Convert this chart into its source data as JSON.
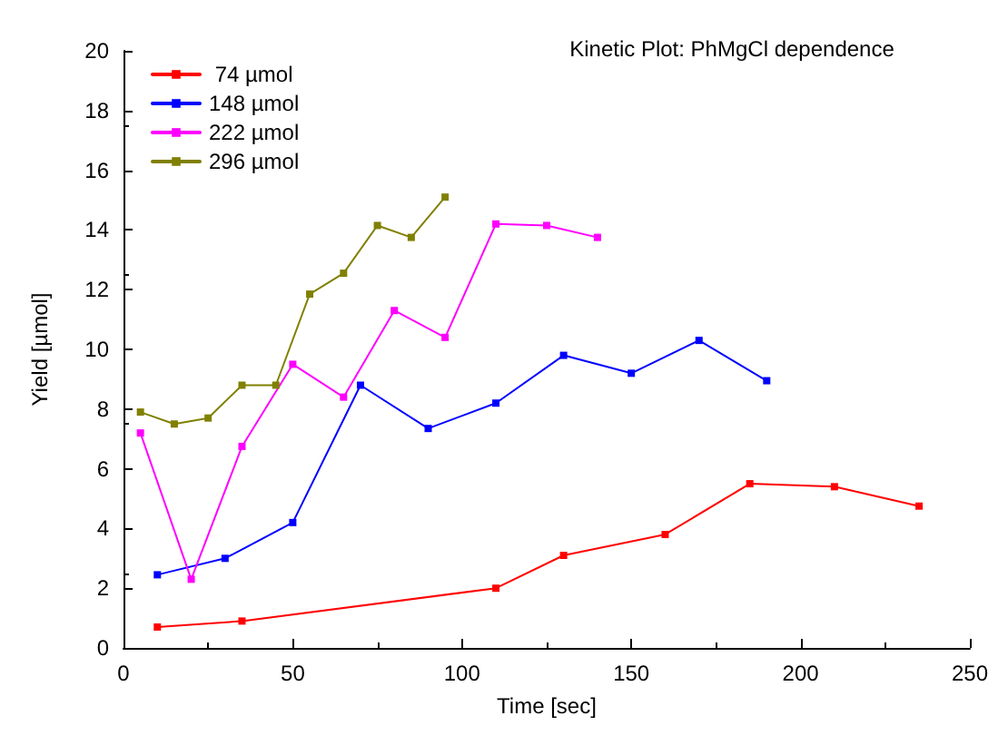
{
  "chart_data": {
    "type": "line",
    "title": "Kinetic Plot: PhMgCl dependence",
    "xlabel": "Time [sec]",
    "ylabel": "Yield [µmol]",
    "xlim": [
      0,
      250
    ],
    "xticks": [
      0,
      50,
      100,
      150,
      200,
      250
    ],
    "ylim": [
      0,
      20
    ],
    "yticks": [
      0,
      2,
      4,
      6,
      8,
      10,
      12,
      14,
      16,
      18,
      20
    ],
    "legend": "top left",
    "marker": "square",
    "line_style": "solid",
    "grid": false,
    "series": [
      {
        "name": " 74 µmol",
        "color": "#ff0000",
        "x": [
          10,
          35,
          110,
          130,
          160,
          185,
          210,
          235
        ],
        "values": [
          0.7,
          0.9,
          2.0,
          3.1,
          3.8,
          5.5,
          5.4,
          4.75
        ]
      },
      {
        "name": "148 µmol",
        "color": "#0000ff",
        "x": [
          10,
          30,
          50,
          70,
          90,
          110,
          130,
          150,
          170,
          190
        ],
        "values": [
          2.45,
          3.0,
          4.2,
          8.8,
          7.35,
          8.2,
          9.8,
          9.2,
          10.3,
          8.95
        ]
      },
      {
        "name": "222 µmol",
        "color": "#ff00ff",
        "x": [
          5,
          20,
          35,
          50,
          65,
          80,
          95,
          110,
          125,
          140
        ],
        "values": [
          7.2,
          2.3,
          6.75,
          9.5,
          8.4,
          11.3,
          10.4,
          14.2,
          14.15,
          13.75
        ]
      },
      {
        "name": "296 µmol",
        "color": "#808000",
        "x": [
          5,
          15,
          25,
          35,
          45,
          55,
          65,
          75,
          85,
          95
        ],
        "values": [
          7.9,
          7.5,
          7.7,
          8.8,
          8.8,
          11.85,
          12.55,
          14.15,
          13.75,
          15.1
        ]
      }
    ]
  }
}
